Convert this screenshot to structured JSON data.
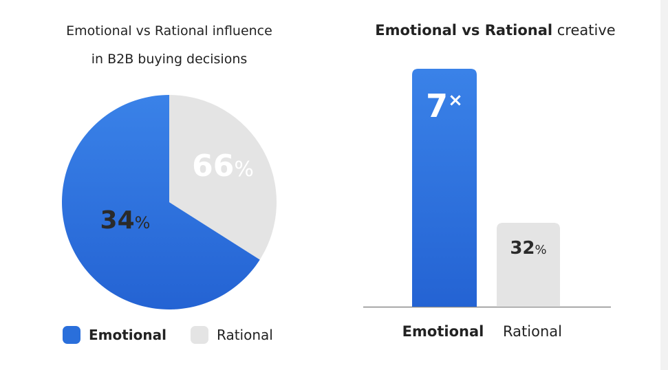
{
  "chart_data": [
    {
      "type": "pie",
      "title_line1": "Emotional vs Rational influence",
      "title_line2": "in B2B buying decisions",
      "slices": [
        {
          "name": "Emotional",
          "value": 66,
          "label": "66%",
          "color": "#2a6fdb"
        },
        {
          "name": "Rational",
          "value": 34,
          "label": "34%",
          "color": "#e4e4e4"
        }
      ],
      "legend": "bottom"
    },
    {
      "type": "bar",
      "title_bold": "Emotional vs Rational",
      "title_rest": "creative",
      "categories": [
        "Emotional",
        "Rational"
      ],
      "data_labels": [
        "7×",
        "32%"
      ],
      "colors": [
        "#2a6fdb",
        "#e4e4e4"
      ]
    }
  ]
}
